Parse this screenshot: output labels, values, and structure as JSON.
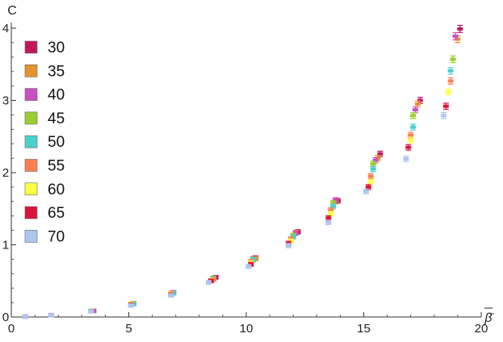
{
  "chart_data": {
    "type": "scatter",
    "title": "",
    "xlabel": "β̄",
    "ylabel": "C",
    "xlim": [
      0,
      20
    ],
    "ylim": [
      0,
      4
    ],
    "xticks": [
      "0",
      "5",
      "10",
      "15",
      "20"
    ],
    "yticks": [
      "0",
      "1",
      "2",
      "3",
      "4"
    ],
    "grid": false,
    "legend_position": "top-left",
    "error_bars": true,
    "series": [
      {
        "name": "30",
        "color": "#c2185b",
        "points": [
          [
            0.6,
            0.006
          ],
          [
            1.7,
            0.027
          ],
          [
            3.5,
            0.085
          ],
          [
            5.2,
            0.19
          ],
          [
            6.9,
            0.34
          ],
          [
            8.7,
            0.55
          ],
          [
            10.4,
            0.82
          ],
          [
            12.2,
            1.18
          ],
          [
            13.9,
            1.61
          ],
          [
            15.7,
            2.26
          ],
          [
            17.4,
            3.0
          ],
          [
            19.1,
            3.99
          ]
        ]
      },
      {
        "name": "35",
        "color": "#e6922e",
        "points": [
          [
            0.6,
            0.006
          ],
          [
            1.7,
            0.027
          ],
          [
            3.5,
            0.085
          ],
          [
            5.2,
            0.19
          ],
          [
            6.9,
            0.34
          ],
          [
            8.6,
            0.54
          ],
          [
            10.4,
            0.81
          ],
          [
            12.1,
            1.17
          ],
          [
            13.8,
            1.6
          ],
          [
            15.6,
            2.2
          ],
          [
            17.3,
            2.95
          ],
          [
            19.0,
            3.85
          ]
        ]
      },
      {
        "name": "40",
        "color": "#c850c0",
        "points": [
          [
            0.6,
            0.006
          ],
          [
            1.7,
            0.027
          ],
          [
            3.5,
            0.084
          ],
          [
            5.2,
            0.19
          ],
          [
            6.9,
            0.34
          ],
          [
            8.6,
            0.54
          ],
          [
            10.3,
            0.81
          ],
          [
            12.1,
            1.16
          ],
          [
            13.8,
            1.62
          ],
          [
            15.5,
            2.17
          ],
          [
            17.2,
            2.87
          ],
          [
            18.9,
            3.89
          ]
        ]
      },
      {
        "name": "45",
        "color": "#9acd32",
        "points": [
          [
            0.6,
            0.006
          ],
          [
            1.7,
            0.026
          ],
          [
            3.4,
            0.083
          ],
          [
            5.2,
            0.19
          ],
          [
            6.9,
            0.33
          ],
          [
            8.6,
            0.54
          ],
          [
            10.3,
            0.8
          ],
          [
            12.0,
            1.13
          ],
          [
            13.7,
            1.58
          ],
          [
            15.4,
            2.12
          ],
          [
            17.1,
            2.79
          ],
          [
            18.8,
            3.57
          ]
        ]
      },
      {
        "name": "50",
        "color": "#48d1cc",
        "points": [
          [
            0.6,
            0.006
          ],
          [
            1.7,
            0.026
          ],
          [
            3.4,
            0.083
          ],
          [
            5.2,
            0.18
          ],
          [
            6.9,
            0.33
          ],
          [
            8.6,
            0.53
          ],
          [
            10.3,
            0.79
          ],
          [
            12.0,
            1.11
          ],
          [
            13.7,
            1.53
          ],
          [
            15.4,
            2.05
          ],
          [
            17.1,
            2.63
          ],
          [
            18.7,
            3.41
          ]
        ]
      },
      {
        "name": "55",
        "color": "#ff7f50",
        "points": [
          [
            0.6,
            0.006
          ],
          [
            1.7,
            0.026
          ],
          [
            3.4,
            0.082
          ],
          [
            5.1,
            0.18
          ],
          [
            6.8,
            0.33
          ],
          [
            8.6,
            0.52
          ],
          [
            10.2,
            0.77
          ],
          [
            11.9,
            1.08
          ],
          [
            13.6,
            1.48
          ],
          [
            15.3,
            1.95
          ],
          [
            17.0,
            2.52
          ],
          [
            18.7,
            3.27
          ]
        ]
      },
      {
        "name": "60",
        "color": "#ffff44",
        "points": [
          [
            0.6,
            0.006
          ],
          [
            1.7,
            0.025
          ],
          [
            3.4,
            0.081
          ],
          [
            5.1,
            0.18
          ],
          [
            6.8,
            0.32
          ],
          [
            8.5,
            0.51
          ],
          [
            10.2,
            0.75
          ],
          [
            11.9,
            1.05
          ],
          [
            13.6,
            1.43
          ],
          [
            15.3,
            1.87
          ],
          [
            17.0,
            2.45
          ],
          [
            18.6,
            3.12
          ]
        ]
      },
      {
        "name": "65",
        "color": "#dc143c",
        "points": [
          [
            0.6,
            0.006
          ],
          [
            1.7,
            0.025
          ],
          [
            3.4,
            0.08
          ],
          [
            5.1,
            0.17
          ],
          [
            6.8,
            0.31
          ],
          [
            8.5,
            0.5
          ],
          [
            10.2,
            0.73
          ],
          [
            11.8,
            1.02
          ],
          [
            13.5,
            1.37
          ],
          [
            15.2,
            1.8
          ],
          [
            16.9,
            2.35
          ],
          [
            18.5,
            2.92
          ]
        ]
      },
      {
        "name": "70",
        "color": "#b0c4f0",
        "points": [
          [
            0.6,
            0.005
          ],
          [
            1.7,
            0.024
          ],
          [
            3.4,
            0.078
          ],
          [
            5.1,
            0.16
          ],
          [
            6.8,
            0.3
          ],
          [
            8.4,
            0.48
          ],
          [
            10.1,
            0.7
          ],
          [
            11.8,
            0.99
          ],
          [
            13.5,
            1.31
          ],
          [
            15.1,
            1.74
          ],
          [
            16.8,
            2.19
          ],
          [
            18.4,
            2.79
          ]
        ]
      }
    ]
  }
}
